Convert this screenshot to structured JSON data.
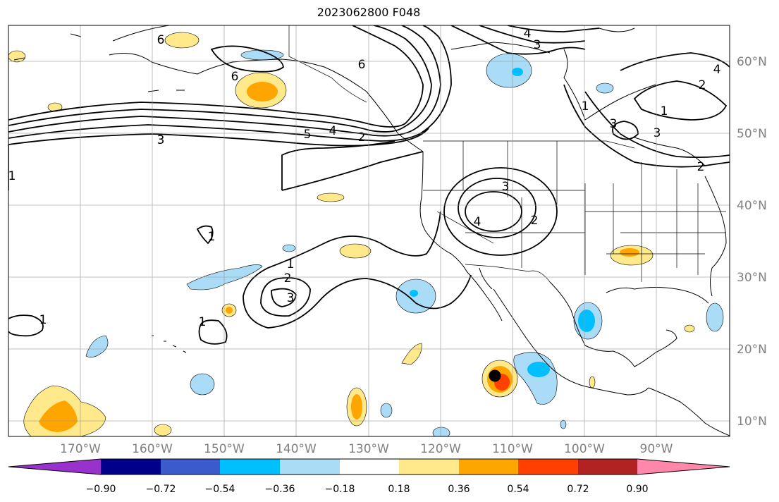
{
  "title": "2023062800 F048",
  "map": {
    "lon_labels": [
      "170°W",
      "160°W",
      "150°W",
      "140°W",
      "130°W",
      "120°W",
      "110°W",
      "100°W",
      "90°W"
    ],
    "lat_labels": [
      "60°N",
      "50°N",
      "40°N",
      "30°N",
      "20°N",
      "10°N"
    ],
    "contour_labels": [
      "6",
      "6",
      "6",
      "4",
      "3",
      "5",
      "4",
      "2",
      "3",
      "2",
      "1",
      "3",
      "4",
      "3",
      "2",
      "1",
      "2",
      "3",
      "1",
      "1",
      "1",
      "4",
      "1",
      "2",
      "3",
      "1"
    ],
    "storm_marker": "black dot"
  },
  "colorbar": {
    "ticks": [
      "−0.90",
      "−0.72",
      "−0.54",
      "−0.36",
      "−0.18",
      "0.18",
      "0.36",
      "0.54",
      "0.72",
      "0.90"
    ],
    "colors": [
      "#9932cc",
      "#00008b",
      "#3b5bcc",
      "#00bfff",
      "#aadcf8",
      "#ffffff",
      "#ffe98a",
      "#ffa500",
      "#ff4000",
      "#b22222",
      "#ff88aa"
    ]
  }
}
